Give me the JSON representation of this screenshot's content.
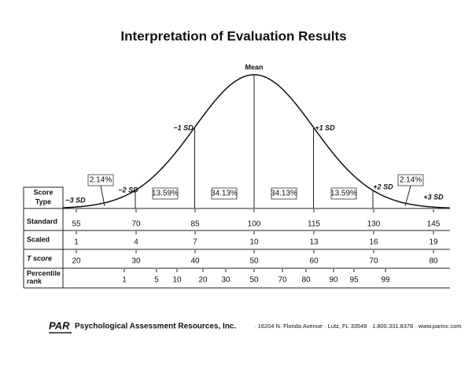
{
  "title": "Interpretation of Evaluation Results",
  "curve": {
    "sd_labels": [
      "−3 SD",
      "−2 SD",
      "−1 SD",
      "Mean",
      "+1 SD",
      "+2 SD",
      "+3 SD"
    ],
    "areas": [
      "2.14%",
      "13.59%",
      "34.13%",
      "34.13%",
      "13.59%",
      "2.14%"
    ]
  },
  "table": {
    "header": [
      "Score",
      "Type"
    ],
    "rows": [
      {
        "label": [
          "Standard"
        ],
        "values": [
          55,
          70,
          85,
          100,
          115,
          130,
          145
        ]
      },
      {
        "label": [
          "Scaled"
        ],
        "values": [
          1,
          4,
          7,
          10,
          13,
          16,
          19
        ]
      },
      {
        "label": [
          "T score"
        ],
        "values": [
          20,
          30,
          40,
          50,
          60,
          70,
          80
        ]
      },
      {
        "label": [
          "Percentile",
          "rank"
        ],
        "values": [
          1,
          5,
          10,
          20,
          30,
          50,
          70,
          80,
          90,
          95,
          99
        ]
      }
    ]
  },
  "footer": {
    "logo": "PAR",
    "company": "Psychological Assessment Resources, Inc.",
    "address": "· 16204 N. Florida Avenue · Lutz, FL 33549 · 1.800.331.8378 · www.parinc.com"
  }
}
